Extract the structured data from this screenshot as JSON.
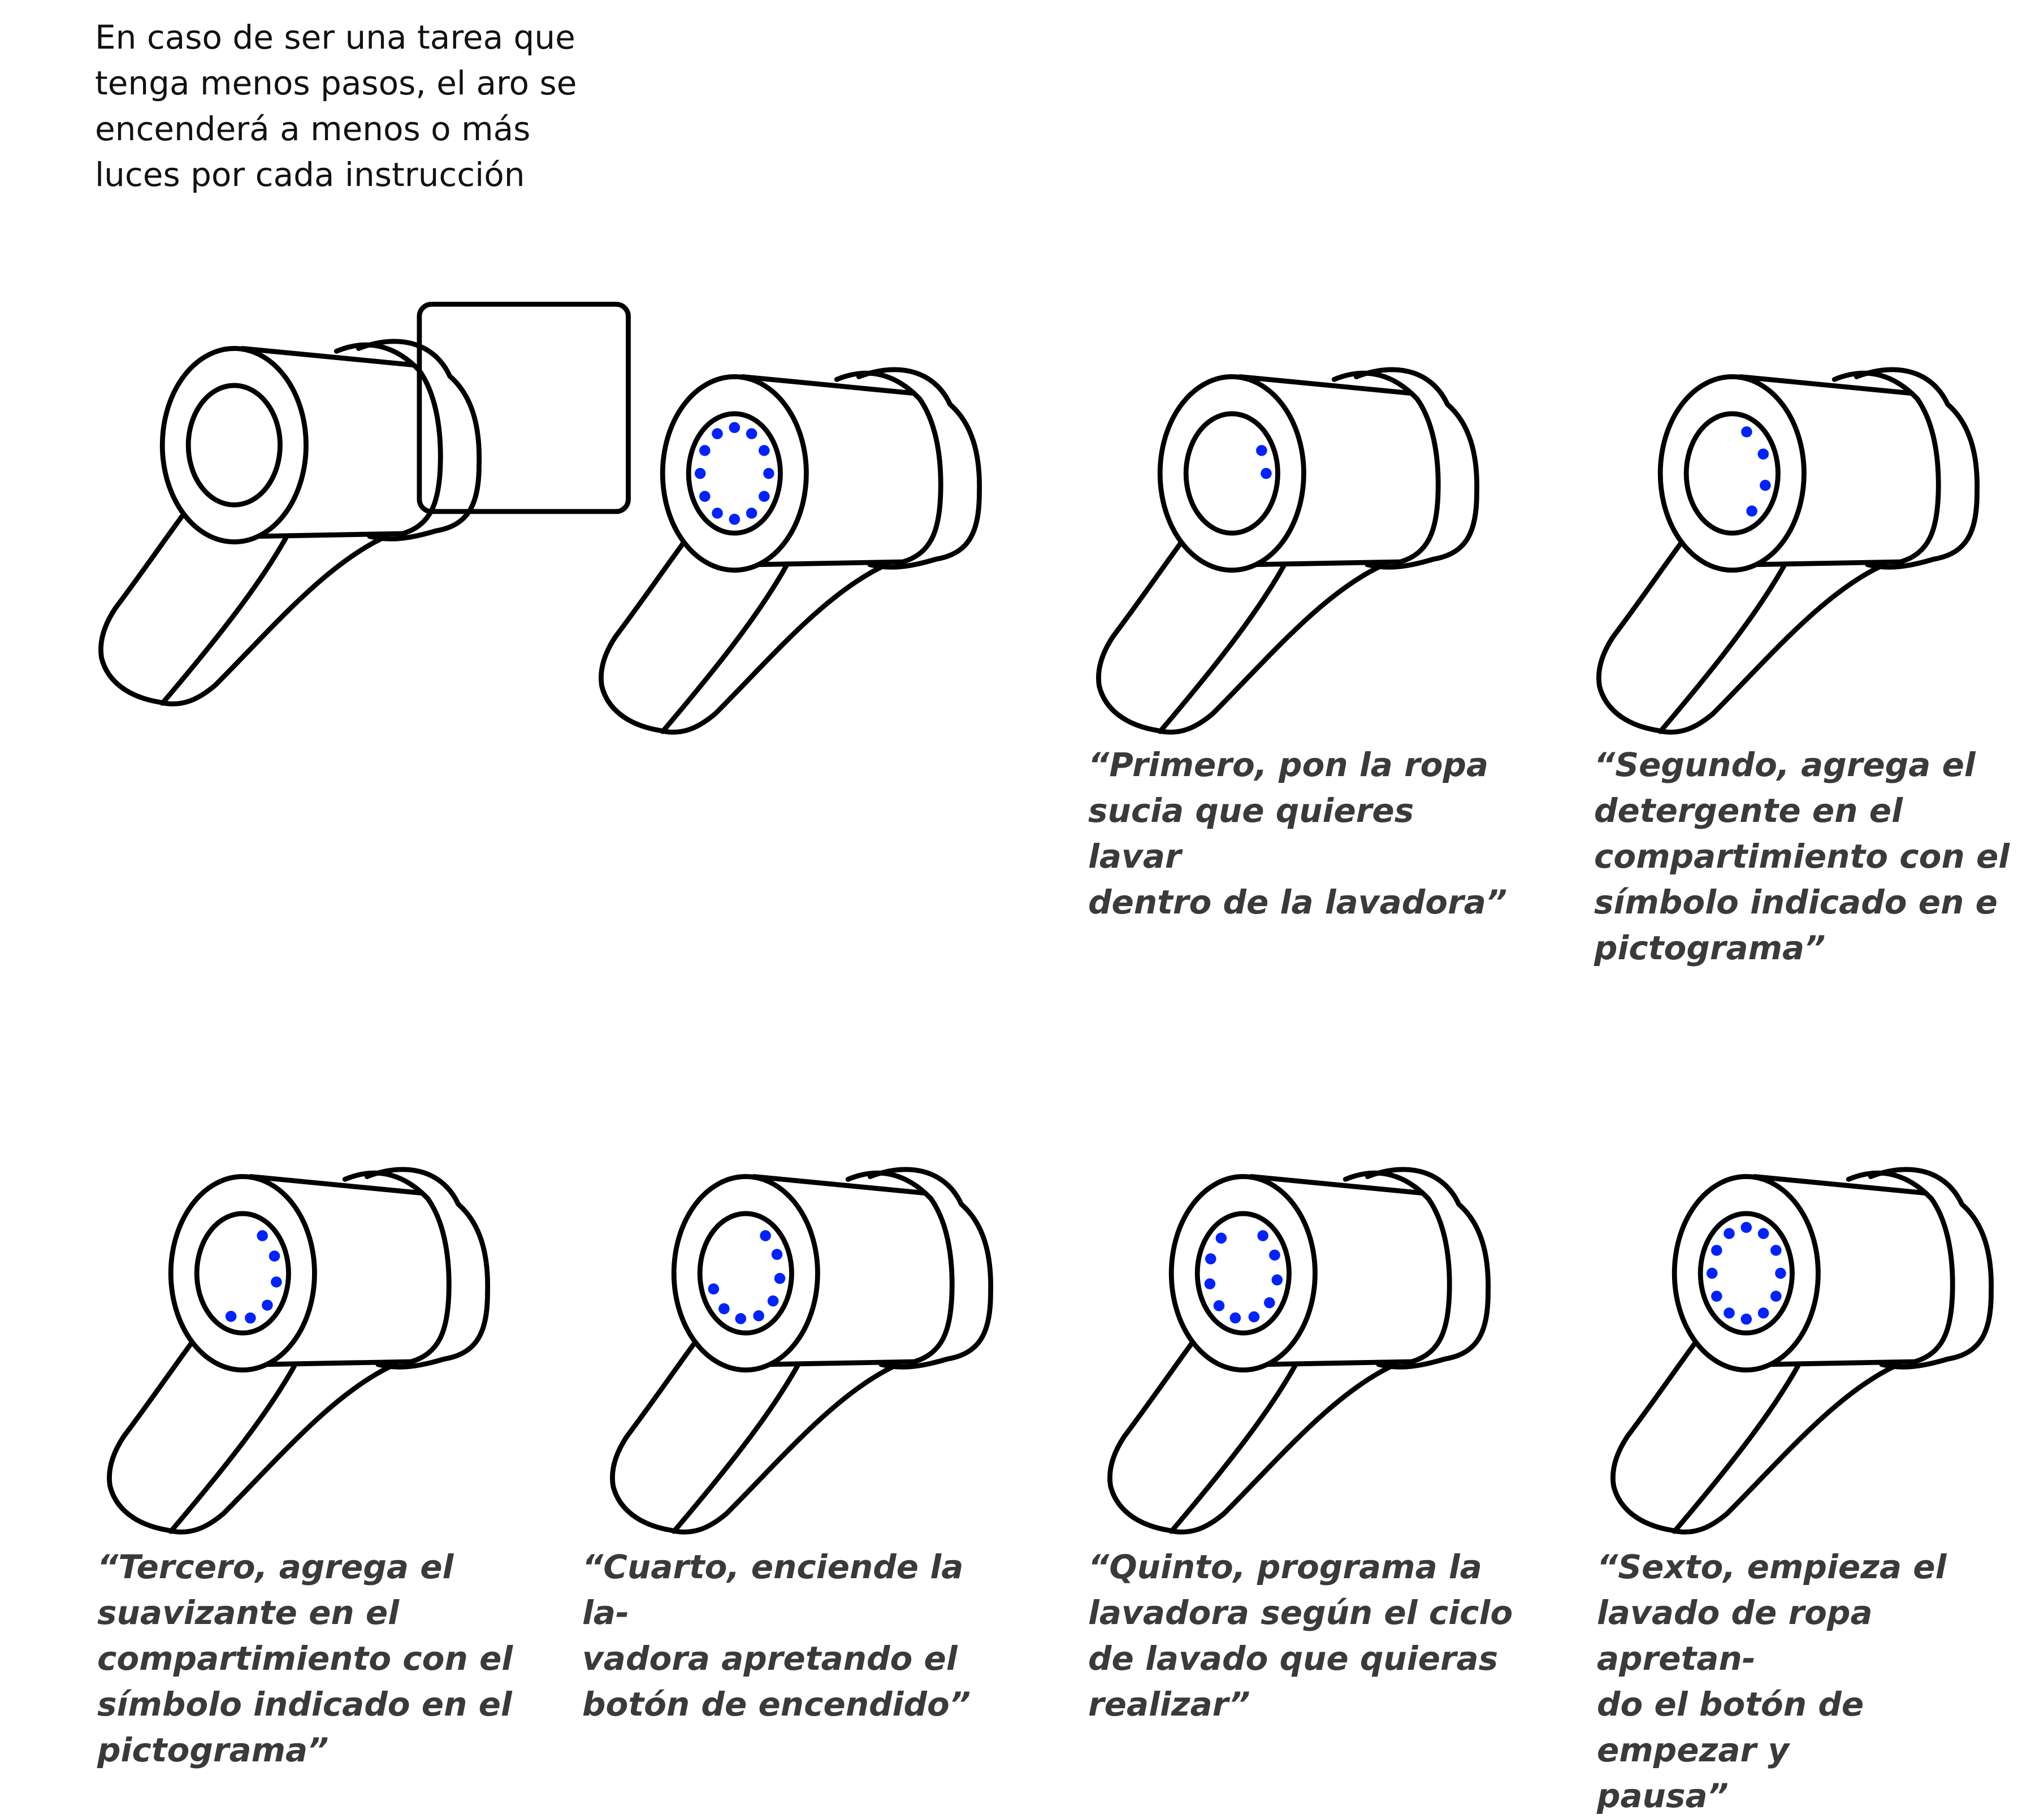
{
  "intro_note": "En caso de ser una tarea que\ntenga menos pasos, el aro se\nencenderá a menos o más\nluces por cada instrucción",
  "colors": {
    "outline": "#000000",
    "led": "#0022ff",
    "caption": "#3a3a3a"
  },
  "steps": [
    {
      "id": "base-device",
      "with_wall_plate": true,
      "led_dots": 0,
      "caption": ""
    },
    {
      "id": "full-ring",
      "led_dots": 12,
      "led_start_deg": -60,
      "led_end_deg": 270,
      "caption": ""
    },
    {
      "id": "step-1",
      "led_dots": 2,
      "led_start_deg": -30,
      "led_end_deg": 0,
      "caption": "“Primero, pon la ropa\nsucia que quieres lavar\ndentro de la lavadora”"
    },
    {
      "id": "step-2",
      "led_dots": 4,
      "led_start_deg": -65,
      "led_end_deg": 55,
      "caption": "“Segundo, agrega el\ndetergente en el\ncompartimiento con el\nsímbolo indicado en e\npictograma”"
    },
    {
      "id": "step-3",
      "led_dots": 6,
      "led_start_deg": -55,
      "led_end_deg": 110,
      "caption": "“Tercero, agrega el\nsuavizante en el\ncompartimiento con el\nsímbolo indicado en el\npictograma”"
    },
    {
      "id": "step-4",
      "led_dots": 8,
      "led_start_deg": -55,
      "led_end_deg": 160,
      "caption": "“Cuarto, enciende la la-\nvadora apretando el\nbotón de encendido”"
    },
    {
      "id": "step-5",
      "led_dots": 10,
      "led_start_deg": -55,
      "led_end_deg": 230,
      "caption": "“Quinto, programa la\nlavadora según el ciclo\nde lavado que quieras\nrealizar”"
    },
    {
      "id": "step-6",
      "led_dots": 12,
      "led_start_deg": -60,
      "led_end_deg": 270,
      "caption": "“Sexto, empieza el\nlavado de ropa apretan-\ndo el botón de empezar y\npausa”"
    }
  ]
}
